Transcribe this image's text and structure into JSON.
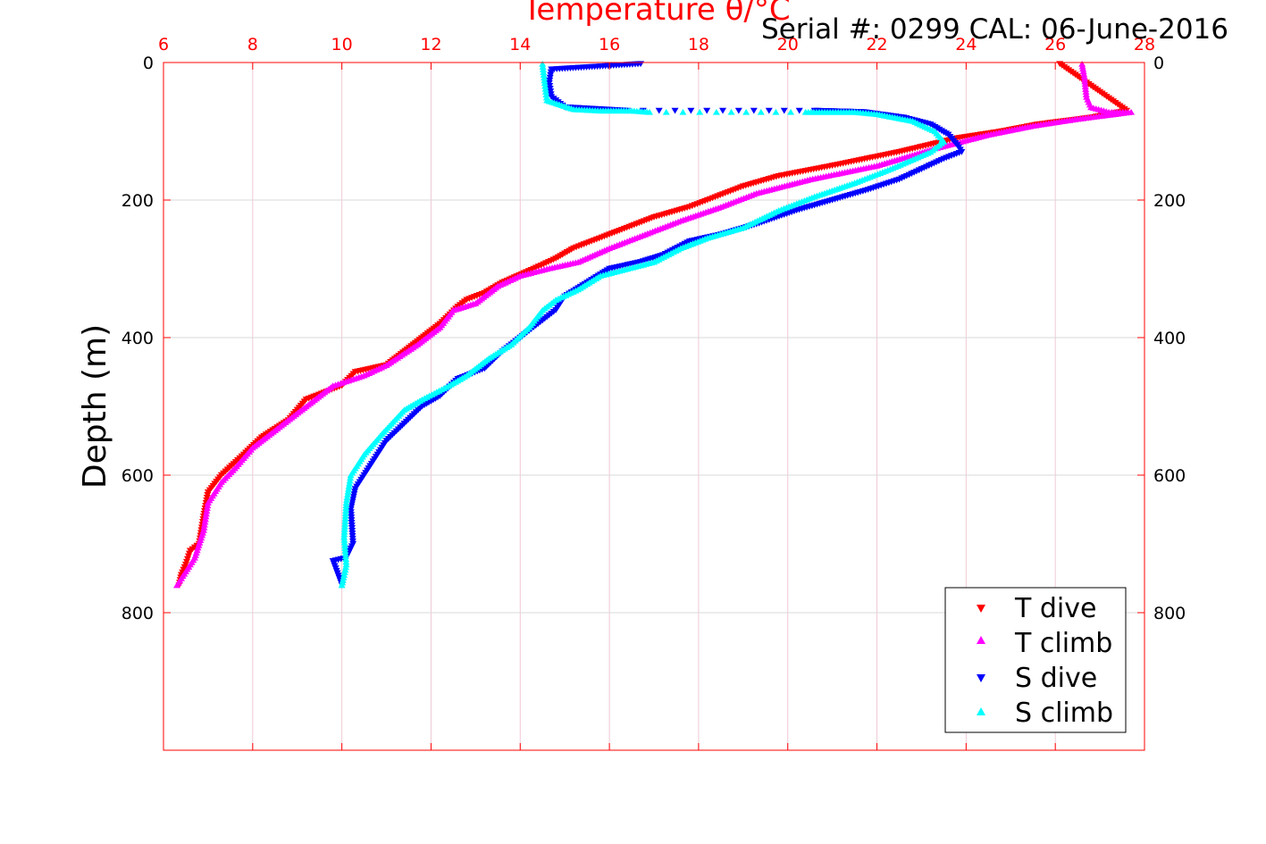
{
  "chart_data": {
    "type": "scatter",
    "title": "Temperature θ/°C",
    "annotation": "Serial #: 0299 CAL: 06-June-2016",
    "xlabel": "Temperature θ/°C",
    "ylabel": "Depth (m)",
    "xlim": [
      6,
      28
    ],
    "ylim": [
      1000,
      0
    ],
    "x_ticks": [
      "6",
      "8",
      "10",
      "12",
      "14",
      "16",
      "18",
      "20",
      "22",
      "24",
      "26",
      "28"
    ],
    "y_ticks": [
      "0",
      "200",
      "400",
      "600",
      "800"
    ],
    "grid": true,
    "legend_position": "bottom-right",
    "colors": {
      "title": "#ff0000",
      "axes": "#ff0000",
      "grid": "#f0c8d4",
      "ygrid": "#d9d9d9"
    },
    "series": [
      {
        "name": "T dive",
        "marker": "triangle-down",
        "color": "#ff0000",
        "x": [
          26.1,
          27.6,
          26.8,
          25.6,
          24.8,
          23.8,
          22.5,
          21.0,
          19.8,
          19.0,
          18.2,
          17.8,
          17.0,
          16.0,
          15.2,
          14.8,
          14.3,
          13.6,
          13.2,
          12.8,
          12.6,
          12.2,
          11.6,
          11.0,
          10.3,
          10.0,
          9.2,
          8.8,
          8.2,
          7.8,
          7.3,
          7.0,
          6.9,
          6.8,
          6.6,
          6.5,
          6.4,
          6.35
        ],
        "y": [
          2,
          70,
          80,
          90,
          100,
          110,
          130,
          150,
          165,
          180,
          200,
          210,
          225,
          250,
          270,
          285,
          300,
          320,
          335,
          345,
          355,
          380,
          410,
          440,
          450,
          470,
          490,
          520,
          545,
          570,
          600,
          625,
          660,
          700,
          710,
          730,
          745,
          760
        ]
      },
      {
        "name": "T climb",
        "marker": "triangle-up",
        "color": "#ff00ff",
        "x": [
          26.6,
          26.65,
          26.7,
          26.8,
          27.2,
          27.7,
          26.5,
          25.5,
          24.5,
          23.3,
          22.0,
          20.5,
          19.3,
          18.5,
          17.6,
          16.8,
          16.0,
          15.3,
          14.6,
          14.0,
          13.5,
          13.0,
          12.5,
          12.2,
          11.7,
          11.0,
          10.5,
          9.8,
          9.2,
          8.6,
          8.0,
          7.6,
          7.3,
          7.0,
          6.9,
          6.7,
          6.5,
          6.3
        ],
        "y": [
          2,
          20,
          50,
          65,
          72,
          72,
          82,
          92,
          105,
          125,
          150,
          170,
          190,
          210,
          230,
          250,
          270,
          290,
          300,
          310,
          325,
          350,
          360,
          385,
          410,
          440,
          455,
          470,
          500,
          530,
          560,
          590,
          610,
          640,
          680,
          720,
          740,
          760
        ]
      },
      {
        "name": "S dive",
        "marker": "triangle-down",
        "color": "#0000ff",
        "x": [
          16.7,
          14.7,
          14.65,
          14.7,
          15.0,
          16.4,
          18.9,
          20.6,
          21.7,
          22.6,
          23.2,
          23.6,
          23.8,
          23.9,
          23.5,
          22.5,
          21.8,
          21.0,
          20.2,
          19.3,
          18.5,
          17.8,
          17.2,
          16.7,
          16.0,
          15.5,
          15.0,
          14.8,
          14.4,
          14.0,
          13.6,
          13.2,
          12.6,
          12.2,
          11.8,
          11.0,
          10.6,
          10.3,
          10.2,
          10.25,
          10.1,
          9.8,
          10.0
        ],
        "y": [
          2,
          10,
          30,
          50,
          65,
          70,
          70,
          70,
          72,
          80,
          90,
          105,
          120,
          130,
          140,
          170,
          185,
          200,
          215,
          235,
          250,
          260,
          280,
          290,
          300,
          320,
          340,
          360,
          380,
          400,
          420,
          445,
          460,
          485,
          500,
          550,
          590,
          620,
          650,
          700,
          720,
          725,
          760
        ]
      },
      {
        "name": "S climb",
        "marker": "triangle-up",
        "color": "#00ffff",
        "x": [
          14.5,
          14.55,
          14.6,
          15.2,
          15.8,
          16.5,
          16.9,
          18.4,
          20.4,
          21.5,
          22.0,
          22.8,
          23.3,
          23.5,
          23.2,
          22.3,
          21.5,
          20.6,
          19.8,
          19.0,
          18.2,
          17.6,
          17.0,
          16.4,
          15.8,
          15.3,
          14.8,
          14.5,
          14.2,
          13.8,
          13.3,
          12.8,
          12.4,
          11.8,
          11.4,
          10.9,
          10.5,
          10.2,
          10.1,
          10.05,
          10.1,
          10.0
        ],
        "y": [
          2,
          30,
          55,
          68,
          70,
          70,
          72,
          72,
          72,
          72,
          75,
          85,
          100,
          115,
          130,
          155,
          175,
          195,
          215,
          240,
          255,
          270,
          290,
          300,
          310,
          330,
          345,
          360,
          385,
          410,
          430,
          455,
          470,
          490,
          505,
          540,
          570,
          600,
          640,
          690,
          730,
          760
        ]
      }
    ]
  }
}
